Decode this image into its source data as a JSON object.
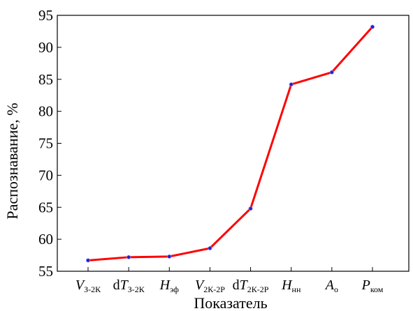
{
  "chart_data": {
    "type": "line",
    "title": "",
    "xlabel": "Показатель",
    "ylabel": "Распознавание, %",
    "ylim": [
      55,
      95
    ],
    "yticks": [
      55,
      60,
      65,
      70,
      75,
      80,
      85,
      90,
      95
    ],
    "grid": false,
    "categories": [
      {
        "prefix": "",
        "main": "V",
        "sub": "З-2К"
      },
      {
        "prefix": "d",
        "main": "T",
        "sub": "З-2К"
      },
      {
        "prefix": "",
        "main": "H",
        "sub": "эф"
      },
      {
        "prefix": "",
        "main": "V",
        "sub": "2К-2Р"
      },
      {
        "prefix": "d",
        "main": "T",
        "sub": "2К-2Р"
      },
      {
        "prefix": "",
        "main": "H",
        "sub": "нн"
      },
      {
        "prefix": "",
        "main": "A",
        "sub": "о"
      },
      {
        "prefix": "",
        "main": "P",
        "sub": "ком"
      }
    ],
    "values": [
      56.7,
      57.2,
      57.3,
      58.6,
      64.8,
      84.2,
      86.1,
      93.2
    ],
    "line_color": "#ff0000",
    "marker_color": "#2020c0"
  }
}
